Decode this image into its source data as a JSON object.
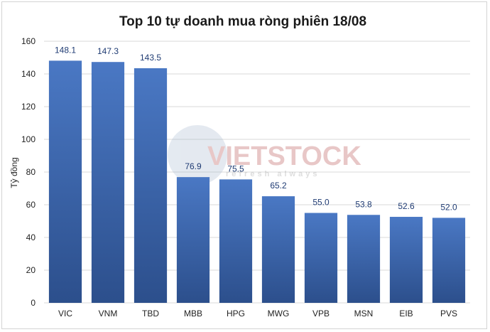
{
  "chart_data": {
    "type": "bar",
    "title": "Top 10 tự doanh mua ròng phiên 18/08",
    "xlabel": "",
    "ylabel": "Tỷ đồng",
    "categories": [
      "VIC",
      "VNM",
      "TBD",
      "MBB",
      "HPG",
      "MWG",
      "VPB",
      "MSN",
      "EIB",
      "PVS"
    ],
    "values": [
      148.1,
      147.3,
      143.5,
      76.9,
      75.5,
      65.2,
      55.0,
      53.8,
      52.6,
      52.0
    ],
    "data_labels": [
      "148.1",
      "147.3",
      "143.5",
      "76.9",
      "75.5",
      "65.2",
      "55.0",
      "53.8",
      "52.6",
      "52.0"
    ],
    "ylim": [
      0,
      160
    ],
    "yticks": [
      0,
      20,
      40,
      60,
      80,
      100,
      120,
      140,
      160
    ],
    "grid": true,
    "legend": "none",
    "colors": {
      "bar_top": "#4a78c4",
      "bar_bottom": "#2c4f8c",
      "grid": "#d9d9d9",
      "label": "#1f3b73"
    }
  },
  "watermark": {
    "brand": "VIETSTOCK",
    "tagline": "refresh always"
  }
}
